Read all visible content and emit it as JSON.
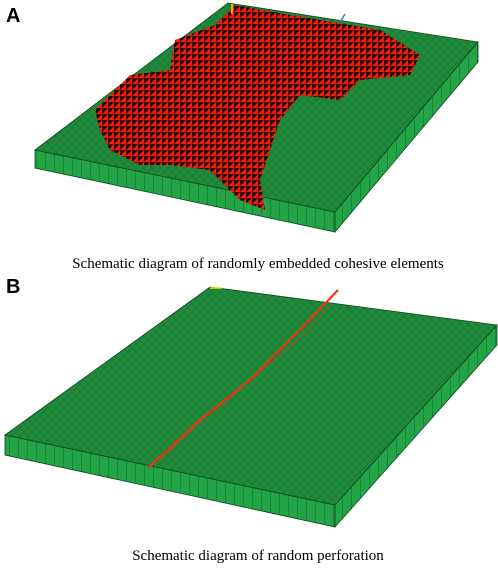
{
  "panels": [
    {
      "label": "A",
      "caption": "Schematic diagram of randomly embedded cohesive elements"
    },
    {
      "label": "B",
      "caption": "Schematic diagram of random perforation"
    }
  ]
}
